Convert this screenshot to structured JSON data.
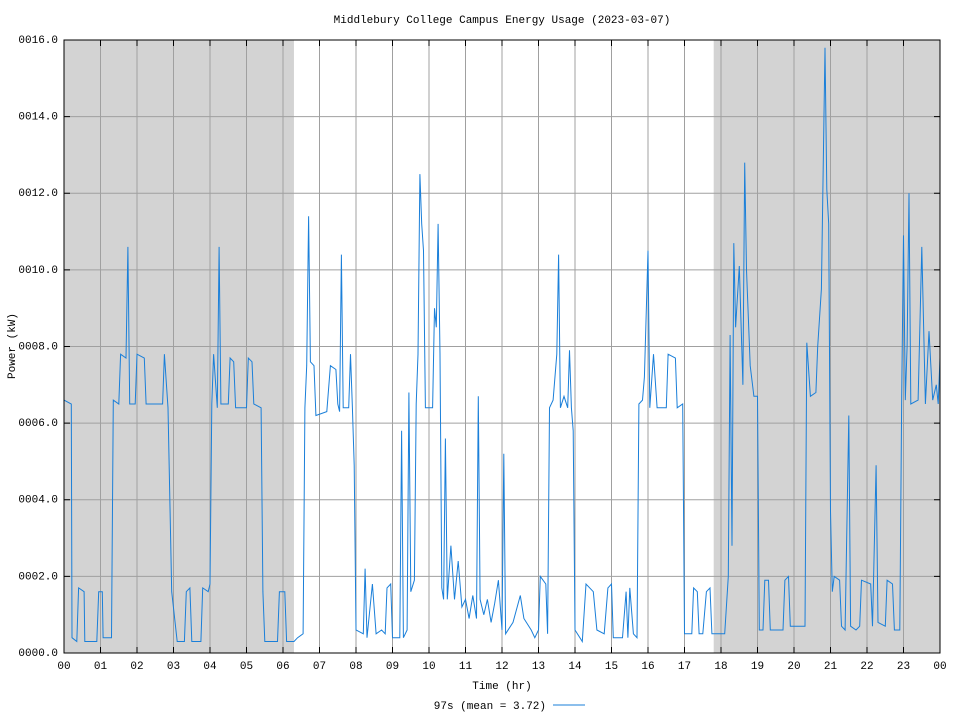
{
  "chart_data": {
    "type": "line",
    "title": "Middlebury College Campus Energy Usage (2023-03-07)",
    "x_label": "Time (hr)",
    "y_label": "Power (kW)",
    "xlim": [
      0,
      24
    ],
    "ylim": [
      0,
      16
    ],
    "xticks": [
      {
        "value": 0,
        "label": "00"
      },
      {
        "value": 1,
        "label": "01"
      },
      {
        "value": 2,
        "label": "02"
      },
      {
        "value": 3,
        "label": "03"
      },
      {
        "value": 4,
        "label": "04"
      },
      {
        "value": 5,
        "label": "05"
      },
      {
        "value": 6,
        "label": "06"
      },
      {
        "value": 7,
        "label": "07"
      },
      {
        "value": 8,
        "label": "08"
      },
      {
        "value": 9,
        "label": "09"
      },
      {
        "value": 10,
        "label": "10"
      },
      {
        "value": 11,
        "label": "11"
      },
      {
        "value": 12,
        "label": "12"
      },
      {
        "value": 13,
        "label": "13"
      },
      {
        "value": 14,
        "label": "14"
      },
      {
        "value": 15,
        "label": "15"
      },
      {
        "value": 16,
        "label": "16"
      },
      {
        "value": 17,
        "label": "17"
      },
      {
        "value": 18,
        "label": "18"
      },
      {
        "value": 19,
        "label": "19"
      },
      {
        "value": 20,
        "label": "20"
      },
      {
        "value": 21,
        "label": "21"
      },
      {
        "value": 22,
        "label": "22"
      },
      {
        "value": 23,
        "label": "23"
      },
      {
        "value": 24,
        "label": "00"
      }
    ],
    "yticks": [
      {
        "value": 0,
        "label": "0000.0"
      },
      {
        "value": 2,
        "label": "0002.0"
      },
      {
        "value": 4,
        "label": "0004.0"
      },
      {
        "value": 6,
        "label": "0006.0"
      },
      {
        "value": 8,
        "label": "0008.0"
      },
      {
        "value": 10,
        "label": "0010.0"
      },
      {
        "value": 12,
        "label": "0012.0"
      },
      {
        "value": 14,
        "label": "0014.0"
      },
      {
        "value": 16,
        "label": "0016.0"
      }
    ],
    "grid": true,
    "shaded_regions": [
      [
        0,
        6.3
      ],
      [
        17.8,
        24
      ]
    ],
    "shade_color": "#d3d3d3",
    "legend_position": "bottom",
    "series": [
      {
        "name": "97s (mean = 3.72)",
        "color": "#1a7fd9",
        "x": [
          0,
          0.2,
          0.22,
          0.35,
          0.4,
          0.55,
          0.57,
          0.9,
          0.95,
          1.05,
          1.07,
          1.3,
          1.35,
          1.5,
          1.55,
          1.7,
          1.75,
          1.8,
          1.95,
          2.0,
          2.2,
          2.25,
          2.7,
          2.75,
          2.85,
          2.95,
          3.1,
          3.3,
          3.35,
          3.45,
          3.5,
          3.75,
          3.8,
          3.95,
          4.0,
          4.05,
          4.1,
          4.2,
          4.25,
          4.3,
          4.5,
          4.55,
          4.65,
          4.7,
          5.0,
          5.05,
          5.15,
          5.2,
          5.4,
          5.45,
          5.5,
          5.85,
          5.9,
          6.05,
          6.1,
          6.3,
          6.4,
          6.55,
          6.6,
          6.65,
          6.7,
          6.75,
          6.85,
          6.9,
          7.2,
          7.3,
          7.45,
          7.5,
          7.55,
          7.6,
          7.65,
          7.8,
          7.85,
          7.9,
          7.95,
          8.0,
          8.2,
          8.25,
          8.3,
          8.45,
          8.55,
          8.7,
          8.8,
          8.85,
          8.95,
          9.0,
          9.2,
          9.25,
          9.3,
          9.4,
          9.45,
          9.5,
          9.6,
          9.65,
          9.7,
          9.75,
          9.8,
          9.85,
          9.9,
          10.1,
          10.15,
          10.2,
          10.25,
          10.3,
          10.35,
          10.4,
          10.45,
          10.5,
          10.6,
          10.7,
          10.8,
          10.9,
          11.0,
          11.1,
          11.2,
          11.3,
          11.35,
          11.4,
          11.5,
          11.6,
          11.7,
          11.8,
          11.9,
          12.0,
          12.05,
          12.1,
          12.3,
          12.5,
          12.6,
          12.8,
          12.9,
          13.0,
          13.05,
          13.2,
          13.25,
          13.3,
          13.4,
          13.5,
          13.55,
          13.6,
          13.7,
          13.8,
          13.85,
          13.9,
          13.95,
          14.0,
          14.2,
          14.3,
          14.5,
          14.6,
          14.8,
          14.9,
          15.0,
          15.05,
          15.3,
          15.4,
          15.45,
          15.5,
          15.6,
          15.7,
          15.75,
          15.85,
          15.9,
          16.0,
          16.05,
          16.15,
          16.25,
          16.5,
          16.55,
          16.75,
          16.8,
          16.95,
          17.0,
          17.2,
          17.25,
          17.35,
          17.4,
          17.5,
          17.6,
          17.7,
          17.75,
          18.1,
          18.2,
          18.25,
          18.3,
          18.35,
          18.4,
          18.5,
          18.6,
          18.65,
          18.7,
          18.8,
          18.9,
          19.0,
          19.05,
          19.15,
          19.2,
          19.3,
          19.35,
          19.7,
          19.75,
          19.85,
          19.9,
          20.3,
          20.35,
          20.45,
          20.6,
          20.65,
          20.75,
          20.85,
          20.9,
          20.95,
          21.0,
          21.05,
          21.1,
          21.25,
          21.3,
          21.4,
          21.5,
          21.55,
          21.7,
          21.8,
          21.85,
          22.1,
          22.15,
          22.25,
          22.3,
          22.5,
          22.55,
          22.7,
          22.75,
          22.9,
          22.95,
          23.0,
          23.05,
          23.1,
          23.15,
          23.2,
          23.4,
          23.5,
          23.6,
          23.7,
          23.8,
          23.9,
          23.95,
          24
        ],
        "values": [
          6.6,
          6.5,
          0.4,
          0.3,
          1.7,
          1.6,
          0.3,
          0.3,
          1.6,
          1.6,
          0.4,
          0.4,
          6.6,
          6.5,
          7.8,
          7.7,
          10.6,
          6.5,
          6.5,
          7.8,
          7.7,
          6.5,
          6.5,
          7.8,
          6.4,
          1.6,
          0.3,
          0.3,
          1.6,
          1.7,
          0.3,
          0.3,
          1.7,
          1.6,
          1.8,
          6.5,
          7.8,
          6.4,
          10.6,
          6.5,
          6.5,
          7.7,
          7.6,
          6.4,
          6.4,
          7.7,
          7.6,
          6.5,
          6.4,
          1.6,
          0.3,
          0.3,
          1.6,
          1.6,
          0.3,
          0.3,
          0.4,
          0.5,
          6.4,
          7.5,
          11.4,
          7.6,
          7.5,
          6.2,
          6.3,
          7.5,
          7.4,
          6.5,
          6.3,
          10.4,
          6.4,
          6.4,
          7.8,
          6.4,
          4.9,
          0.6,
          0.5,
          2.2,
          0.4,
          1.8,
          0.5,
          0.6,
          0.5,
          1.7,
          1.8,
          0.4,
          0.4,
          5.8,
          0.4,
          0.6,
          6.8,
          1.6,
          1.9,
          6.5,
          7.8,
          12.5,
          11.2,
          10.5,
          6.4,
          6.4,
          9.0,
          8.5,
          11.2,
          7.8,
          1.7,
          1.4,
          5.6,
          1.4,
          2.8,
          1.4,
          2.4,
          1.2,
          1.4,
          0.9,
          1.5,
          0.9,
          6.7,
          1.4,
          1.0,
          1.4,
          0.8,
          1.3,
          1.9,
          0.6,
          5.2,
          0.5,
          0.8,
          1.5,
          0.9,
          0.6,
          0.4,
          0.6,
          2.0,
          1.8,
          0.5,
          6.4,
          6.6,
          7.8,
          10.4,
          6.4,
          6.7,
          6.4,
          7.9,
          6.4,
          5.8,
          0.6,
          0.3,
          1.8,
          1.6,
          0.6,
          0.5,
          1.7,
          1.8,
          0.4,
          0.4,
          1.6,
          0.4,
          1.7,
          0.5,
          0.4,
          6.5,
          6.6,
          7.2,
          10.5,
          6.4,
          7.8,
          6.4,
          6.4,
          7.8,
          7.7,
          6.4,
          6.5,
          0.5,
          0.5,
          1.7,
          1.6,
          0.5,
          0.5,
          1.6,
          1.7,
          0.5,
          0.5,
          2.0,
          8.3,
          2.8,
          10.7,
          8.5,
          10.1,
          7.0,
          12.8,
          10.0,
          7.5,
          6.7,
          6.7,
          0.6,
          0.6,
          1.9,
          1.9,
          0.6,
          0.6,
          1.9,
          2.0,
          0.7,
          0.7,
          8.1,
          6.7,
          6.8,
          8.0,
          9.5,
          15.8,
          12.1,
          11.2,
          3.7,
          1.6,
          2.0,
          1.9,
          0.7,
          0.6,
          6.2,
          0.7,
          0.6,
          0.7,
          1.9,
          1.8,
          0.7,
          4.9,
          0.8,
          0.7,
          1.9,
          1.8,
          0.6,
          0.6,
          6.7,
          10.9,
          6.6,
          8.0,
          12.0,
          6.5,
          6.6,
          10.6,
          6.5,
          8.4,
          6.6,
          7.0,
          6.5,
          7.7
        ]
      }
    ]
  }
}
